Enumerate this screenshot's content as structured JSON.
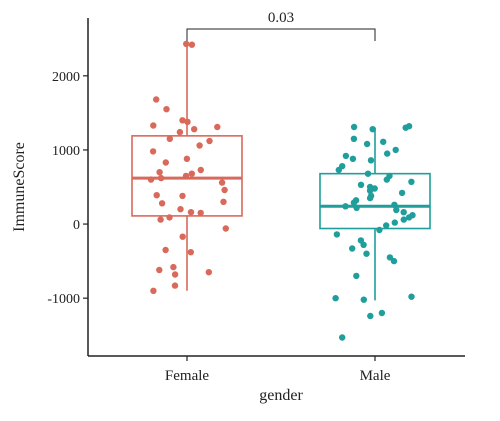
{
  "chart_data": {
    "type": "boxplot",
    "xlabel": "gender",
    "ylabel": "ImmuneScore",
    "ylim": [
      -1780,
      2780
    ],
    "yticks": [
      2000,
      1000,
      0,
      -1000
    ],
    "grid": false,
    "legend": "none",
    "categories": [
      "Female",
      "Male"
    ],
    "colors": {
      "Female": "#d9695b",
      "Male": "#1f9e9b"
    },
    "boxes": [
      {
        "category": "Female",
        "min": -900,
        "q1": 110,
        "median": 620,
        "q3": 1190,
        "max": 2420
      },
      {
        "category": "Male",
        "min": -1030,
        "q1": -60,
        "median": 240,
        "q3": 680,
        "max": 1300
      }
    ],
    "points": {
      "Female": [
        2430,
        2420,
        1680,
        1550,
        1400,
        1380,
        1330,
        1310,
        1280,
        1240,
        1150,
        1120,
        1060,
        980,
        880,
        830,
        730,
        700,
        680,
        650,
        620,
        600,
        560,
        460,
        390,
        380,
        300,
        280,
        200,
        160,
        150,
        90,
        60,
        -60,
        -170,
        -350,
        -380,
        -580,
        -620,
        -650,
        -680,
        -830,
        -900
      ],
      "Male": [
        1320,
        1310,
        1300,
        1280,
        1150,
        1110,
        1080,
        1000,
        950,
        920,
        880,
        860,
        780,
        730,
        680,
        650,
        600,
        570,
        530,
        500,
        480,
        450,
        420,
        380,
        350,
        320,
        290,
        260,
        240,
        220,
        190,
        160,
        120,
        90,
        60,
        20,
        -20,
        -80,
        -140,
        -220,
        -280,
        -330,
        -400,
        -450,
        -500,
        -700,
        -980,
        -1000,
        -1020,
        -1200,
        -1240,
        -1530
      ]
    },
    "comparison": {
      "between": [
        "Female",
        "Male"
      ],
      "label": "0.03"
    }
  }
}
